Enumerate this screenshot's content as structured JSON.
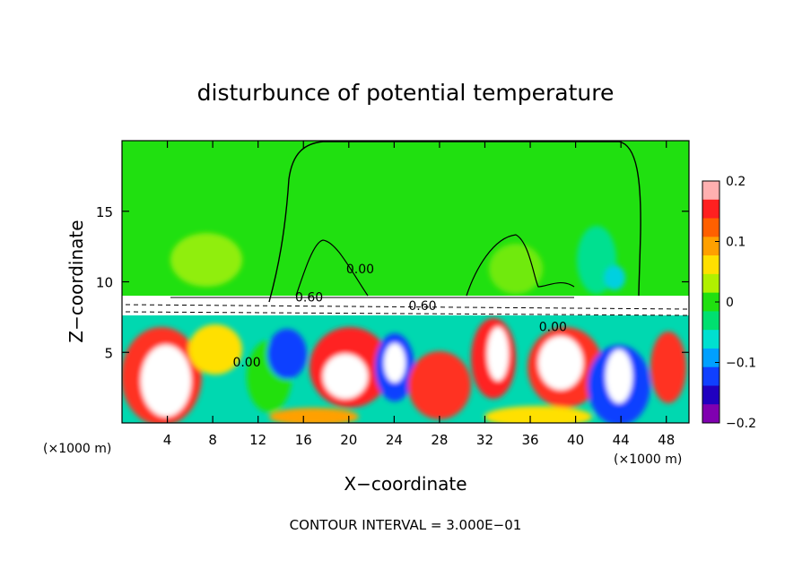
{
  "chart_data": {
    "type": "heatmap",
    "title": "disturbunce of potential temperature",
    "xlabel": "X−coordinate",
    "ylabel": "Z−coordinate",
    "x_unit": "(×1000 m)",
    "z_unit": "(×1000 m)",
    "footer": "CONTOUR INTERVAL = 3.000E−01",
    "xlim": [
      0,
      50
    ],
    "zlim": [
      0,
      20
    ],
    "x_ticks": [
      "4",
      "8",
      "12",
      "16",
      "20",
      "24",
      "28",
      "32",
      "36",
      "40",
      "44",
      "48"
    ],
    "x_tick_values": [
      4,
      8,
      12,
      16,
      20,
      24,
      28,
      32,
      36,
      40,
      44,
      48
    ],
    "z_ticks": [
      "5",
      "10",
      "15"
    ],
    "z_tick_values": [
      5,
      10,
      15
    ],
    "colorbar": {
      "range": [
        -0.2,
        0.2
      ],
      "tick_labels": [
        "0.2",
        "0.1",
        "0",
        "−0.1",
        "−0.2"
      ],
      "tick_values": [
        0.2,
        0.1,
        0,
        -0.1,
        -0.2
      ],
      "colors": [
        "#ffb0b0",
        "#ff2020",
        "#ff6000",
        "#ffa000",
        "#ffe000",
        "#b0f000",
        "#20e010",
        "#00e070",
        "#00e0d0",
        "#00a0ff",
        "#1040ff",
        "#2000c0",
        "#8000b0"
      ]
    },
    "contour_labels": [
      {
        "text": "0.60",
        "x": 16.5,
        "z": 8.6
      },
      {
        "text": "0.60",
        "x": 26.5,
        "z": 8.0
      },
      {
        "text": "0.00",
        "x": 21.0,
        "z": 10.6
      },
      {
        "text": "0.00",
        "x": 11.0,
        "z": 4.0
      },
      {
        "text": "0.00",
        "x": 38.0,
        "z": 6.5
      }
    ]
  }
}
